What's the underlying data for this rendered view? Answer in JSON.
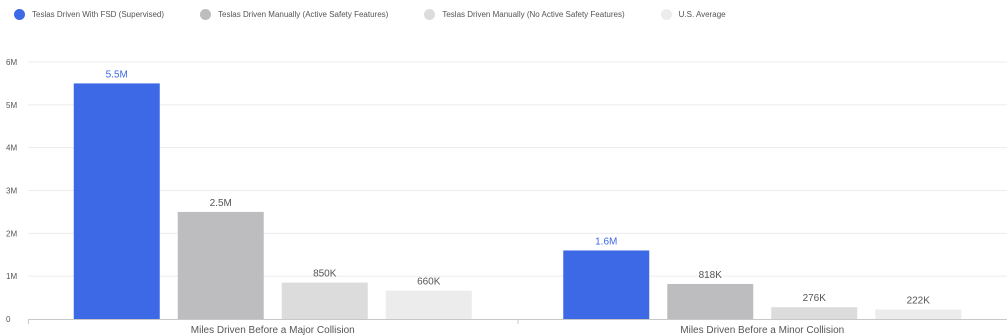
{
  "chart_data": {
    "type": "bar",
    "categories": [
      "Miles Driven Before a Major Collision",
      "Miles Driven Before a Minor Collision"
    ],
    "series": [
      {
        "name": "Teslas Driven With FSD (Supervised)",
        "values": [
          5500000,
          1600000
        ],
        "labels": [
          "5.5M",
          "1.6M"
        ],
        "color": "#3d68e6",
        "label_color": "#3d68e6"
      },
      {
        "name": "Teslas Driven Manually (Active Safety Features)",
        "values": [
          2500000,
          818000
        ],
        "labels": [
          "2.5M",
          "818K"
        ],
        "color": "#bdbdbf",
        "label_color": "#555555"
      },
      {
        "name": "Teslas Driven Manually (No Active Safety Features)",
        "values": [
          850000,
          276000
        ],
        "labels": [
          "850K",
          "276K"
        ],
        "color": "#dcdcdc",
        "label_color": "#555555"
      },
      {
        "name": "U.S. Average",
        "values": [
          660000,
          222000
        ],
        "labels": [
          "660K",
          "222K"
        ],
        "color": "#ececec",
        "label_color": "#555555"
      }
    ],
    "yticks": [
      {
        "value": 0,
        "label": "0"
      },
      {
        "value": 1000000,
        "label": "1M"
      },
      {
        "value": 2000000,
        "label": "2M"
      },
      {
        "value": 3000000,
        "label": "3M"
      },
      {
        "value": 4000000,
        "label": "4M"
      },
      {
        "value": 5000000,
        "label": "5M"
      },
      {
        "value": 6000000,
        "label": "6M"
      }
    ],
    "ylim": [
      0,
      6000000
    ],
    "grid": true,
    "legend": "top-left"
  }
}
